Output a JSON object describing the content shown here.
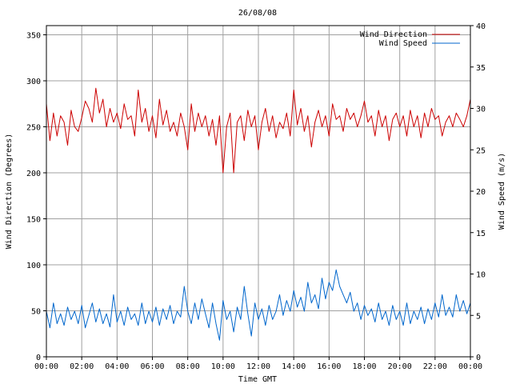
{
  "chart_data": {
    "type": "line",
    "title": "26/08/08",
    "xlabel": "Time GMT",
    "ylabel_left": "Wind Direction (Degrees)",
    "ylabel_right": "Wind Speed (m/s)",
    "xlim": [
      0,
      24
    ],
    "x_ticks": [
      "00:00",
      "02:00",
      "04:00",
      "06:00",
      "08:00",
      "10:00",
      "12:00",
      "14:00",
      "16:00",
      "18:00",
      "20:00",
      "22:00",
      "00:00"
    ],
    "ylim_left": [
      0,
      360
    ],
    "y_ticks_left": [
      0,
      50,
      100,
      150,
      200,
      250,
      300,
      350
    ],
    "ylim_right": [
      0,
      40
    ],
    "y_ticks_right": [
      0,
      5,
      10,
      15,
      20,
      25,
      30,
      35,
      40
    ],
    "grid": true,
    "legend_position": "top-right",
    "colors": {
      "direction": "#cc0000",
      "speed": "#0066cc",
      "grid": "#a0a0a0",
      "frame": "#000000"
    },
    "series": [
      {
        "name": "Wind Direction",
        "axis": "left",
        "x": [
          0.0,
          0.2,
          0.4,
          0.6,
          0.8,
          1.0,
          1.2,
          1.4,
          1.6,
          1.8,
          2.0,
          2.2,
          2.4,
          2.6,
          2.8,
          3.0,
          3.2,
          3.4,
          3.6,
          3.8,
          4.0,
          4.2,
          4.4,
          4.6,
          4.8,
          5.0,
          5.2,
          5.4,
          5.6,
          5.8,
          6.0,
          6.2,
          6.4,
          6.6,
          6.8,
          7.0,
          7.2,
          7.4,
          7.6,
          7.8,
          8.0,
          8.2,
          8.4,
          8.6,
          8.8,
          9.0,
          9.2,
          9.4,
          9.6,
          9.8,
          10.0,
          10.2,
          10.4,
          10.6,
          10.8,
          11.0,
          11.2,
          11.4,
          11.6,
          11.8,
          12.0,
          12.2,
          12.4,
          12.6,
          12.8,
          13.0,
          13.2,
          13.4,
          13.6,
          13.8,
          14.0,
          14.2,
          14.4,
          14.6,
          14.8,
          15.0,
          15.2,
          15.4,
          15.6,
          15.8,
          16.0,
          16.2,
          16.4,
          16.6,
          16.8,
          17.0,
          17.2,
          17.4,
          17.6,
          17.8,
          18.0,
          18.2,
          18.4,
          18.6,
          18.8,
          19.0,
          19.2,
          19.4,
          19.6,
          19.8,
          20.0,
          20.2,
          20.4,
          20.6,
          20.8,
          21.0,
          21.2,
          21.4,
          21.6,
          21.8,
          22.0,
          22.2,
          22.4,
          22.6,
          22.8,
          23.0,
          23.2,
          23.4,
          23.6,
          23.8,
          24.0
        ],
        "values": [
          275,
          235,
          265,
          240,
          262,
          255,
          230,
          268,
          250,
          245,
          260,
          278,
          270,
          255,
          292,
          265,
          280,
          250,
          270,
          255,
          265,
          248,
          275,
          258,
          262,
          240,
          290,
          255,
          270,
          245,
          262,
          238,
          280,
          252,
          268,
          245,
          255,
          240,
          265,
          250,
          225,
          275,
          245,
          265,
          250,
          262,
          240,
          258,
          230,
          262,
          200,
          250,
          265,
          200,
          255,
          262,
          235,
          268,
          250,
          262,
          225,
          255,
          270,
          245,
          262,
          238,
          255,
          248,
          265,
          240,
          290,
          252,
          270,
          245,
          262,
          228,
          255,
          268,
          250,
          262,
          240,
          275,
          258,
          262,
          245,
          270,
          258,
          265,
          250,
          262,
          278,
          255,
          262,
          240,
          268,
          250,
          262,
          235,
          258,
          265,
          250,
          262,
          240,
          268,
          250,
          262,
          238,
          265,
          250,
          270,
          258,
          262,
          240,
          255,
          262,
          250,
          265,
          258,
          250,
          262,
          280
        ]
      },
      {
        "name": "Wind Speed",
        "axis": "right",
        "x": [
          0.0,
          0.2,
          0.4,
          0.6,
          0.8,
          1.0,
          1.2,
          1.4,
          1.6,
          1.8,
          2.0,
          2.2,
          2.4,
          2.6,
          2.8,
          3.0,
          3.2,
          3.4,
          3.6,
          3.8,
          4.0,
          4.2,
          4.4,
          4.6,
          4.8,
          5.0,
          5.2,
          5.4,
          5.6,
          5.8,
          6.0,
          6.2,
          6.4,
          6.6,
          6.8,
          7.0,
          7.2,
          7.4,
          7.6,
          7.8,
          8.0,
          8.2,
          8.4,
          8.6,
          8.8,
          9.0,
          9.2,
          9.4,
          9.6,
          9.8,
          10.0,
          10.2,
          10.4,
          10.6,
          10.8,
          11.0,
          11.2,
          11.4,
          11.6,
          11.8,
          12.0,
          12.2,
          12.4,
          12.6,
          12.8,
          13.0,
          13.2,
          13.4,
          13.6,
          13.8,
          14.0,
          14.2,
          14.4,
          14.6,
          14.8,
          15.0,
          15.2,
          15.4,
          15.6,
          15.8,
          16.0,
          16.2,
          16.4,
          16.6,
          16.8,
          17.0,
          17.2,
          17.4,
          17.6,
          17.8,
          18.0,
          18.2,
          18.4,
          18.6,
          18.8,
          19.0,
          19.2,
          19.4,
          19.6,
          19.8,
          20.0,
          20.2,
          20.4,
          20.6,
          20.8,
          21.0,
          21.2,
          21.4,
          21.6,
          21.8,
          22.0,
          22.2,
          22.4,
          22.6,
          22.8,
          23.0,
          23.2,
          23.4,
          23.6,
          23.8,
          24.0
        ],
        "values": [
          5.5,
          3.5,
          6.5,
          4.0,
          5.2,
          3.8,
          6.0,
          4.5,
          5.5,
          4.0,
          6.2,
          3.5,
          5.0,
          6.5,
          4.2,
          5.8,
          4.0,
          5.2,
          3.6,
          7.5,
          4.2,
          5.5,
          3.8,
          6.0,
          4.5,
          5.2,
          3.8,
          6.5,
          4.0,
          5.5,
          4.2,
          6.0,
          3.8,
          5.8,
          4.5,
          6.2,
          4.0,
          5.5,
          4.8,
          8.5,
          5.5,
          4.0,
          6.5,
          4.5,
          7.0,
          5.2,
          3.5,
          6.5,
          4.0,
          2.0,
          6.8,
          4.5,
          5.5,
          3.0,
          6.0,
          4.5,
          8.5,
          5.2,
          2.5,
          6.5,
          4.5,
          5.8,
          3.8,
          6.2,
          4.5,
          5.5,
          7.5,
          5.0,
          6.8,
          5.5,
          8.0,
          6.0,
          7.2,
          5.5,
          9.0,
          6.5,
          7.5,
          5.8,
          9.5,
          7.0,
          9.0,
          8.0,
          10.5,
          8.5,
          7.5,
          6.5,
          7.8,
          5.5,
          6.5,
          4.5,
          6.2,
          5.0,
          5.8,
          4.2,
          6.5,
          4.5,
          5.5,
          3.8,
          6.2,
          4.5,
          5.5,
          3.8,
          6.5,
          4.0,
          5.5,
          4.5,
          6.0,
          4.0,
          5.8,
          4.5,
          6.5,
          4.8,
          7.5,
          5.0,
          6.0,
          4.8,
          7.5,
          5.5,
          6.8,
          5.2,
          6.5
        ]
      }
    ]
  }
}
